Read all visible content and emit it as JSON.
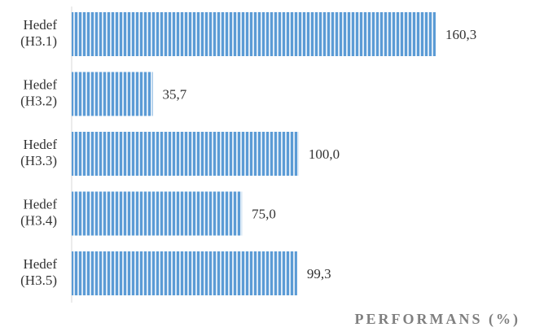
{
  "chart_data": {
    "type": "bar",
    "orientation": "horizontal",
    "categories": [
      [
        "Hedef",
        "(H3.1)"
      ],
      [
        "Hedef",
        "(H3.2)"
      ],
      [
        "Hedef",
        "(H3.3)"
      ],
      [
        "Hedef",
        "(H3.4)"
      ],
      [
        "Hedef",
        "(H3.5)"
      ]
    ],
    "values": [
      160.3,
      35.7,
      100.0,
      75.0,
      99.3
    ],
    "value_labels": [
      "160,3",
      "35,7",
      "100,0",
      "75,0",
      "99,3"
    ],
    "title": "",
    "xlabel": "PERFORMANS (%)",
    "ylabel": "",
    "xlim": [
      0,
      200
    ],
    "grid": false,
    "bar_color": "#5b9bd5",
    "bar_stripe_color": "#dbe9f6"
  }
}
